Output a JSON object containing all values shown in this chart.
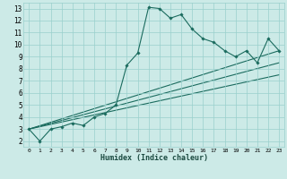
{
  "xlabel": "Humidex (Indice chaleur)",
  "bg_color": "#cceae7",
  "grid_color": "#99d0cc",
  "line_color": "#1a6b5e",
  "xlim": [
    -0.5,
    23.5
  ],
  "ylim": [
    1.5,
    13.5
  ],
  "xticks": [
    0,
    1,
    2,
    3,
    4,
    5,
    6,
    7,
    8,
    9,
    10,
    11,
    12,
    13,
    14,
    15,
    16,
    17,
    18,
    19,
    20,
    21,
    22,
    23
  ],
  "yticks": [
    2,
    3,
    4,
    5,
    6,
    7,
    8,
    9,
    10,
    11,
    12,
    13
  ],
  "main_x": [
    0,
    1,
    2,
    3,
    4,
    5,
    6,
    7,
    8,
    9,
    10,
    11,
    12,
    13,
    14,
    15,
    16,
    17,
    18,
    19,
    20,
    21,
    22,
    23
  ],
  "main_y": [
    3.0,
    2.0,
    3.0,
    3.2,
    3.5,
    3.3,
    4.0,
    4.3,
    5.0,
    8.3,
    9.3,
    13.1,
    13.0,
    12.2,
    12.5,
    11.3,
    10.5,
    10.2,
    9.5,
    9.0,
    9.5,
    8.5,
    10.5,
    9.5
  ],
  "line1_x": [
    0,
    23
  ],
  "line1_y": [
    3.0,
    9.5
  ],
  "line2_x": [
    0,
    23
  ],
  "line2_y": [
    3.0,
    8.5
  ],
  "line3_x": [
    0,
    23
  ],
  "line3_y": [
    3.0,
    7.5
  ]
}
